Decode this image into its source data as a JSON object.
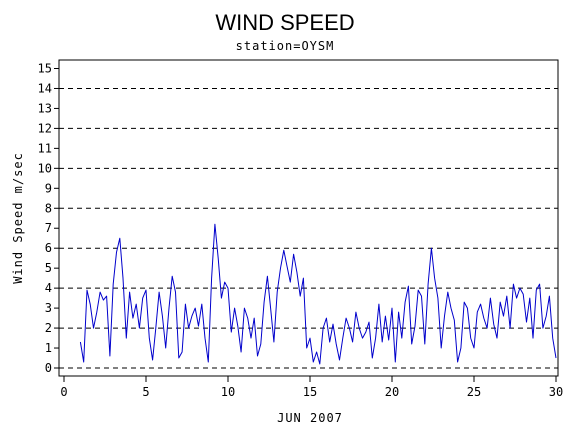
{
  "chart_data": {
    "type": "line",
    "title": "WIND SPEED",
    "subtitle": "station=OYSM",
    "xlabel": "JUN 2007",
    "ylabel": "Wind Speed m/sec",
    "xlim": [
      0,
      30
    ],
    "ylim": [
      0,
      15.5
    ],
    "xticks": [
      0,
      5,
      10,
      15,
      20,
      25,
      30
    ],
    "yticks": [
      0,
      1,
      2,
      3,
      4,
      5,
      6,
      7,
      8,
      9,
      10,
      11,
      12,
      13,
      14,
      15
    ],
    "gridlines_dashed": [
      0,
      2,
      4,
      6,
      8,
      10,
      12,
      14
    ],
    "line_color": "#0000cc",
    "series": [
      {
        "x": [
          1.0,
          1.2,
          1.4,
          1.6,
          1.8,
          2.0,
          2.2,
          2.4,
          2.6,
          2.8,
          3.0,
          3.2,
          3.4,
          3.6,
          3.8,
          4.0,
          4.2,
          4.4,
          4.6,
          4.8,
          5.0,
          5.2,
          5.4,
          5.6,
          5.8,
          6.0,
          6.2,
          6.4,
          6.6,
          6.8,
          7.0,
          7.2,
          7.4,
          7.6,
          7.8,
          8.0,
          8.2,
          8.4,
          8.6,
          8.8,
          9.0,
          9.2,
          9.4,
          9.6,
          9.8,
          10.0,
          10.2,
          10.4,
          10.6,
          10.8,
          11.0,
          11.2,
          11.4,
          11.6,
          11.8,
          12.0,
          12.2,
          12.4,
          12.6,
          12.8,
          13.0,
          13.2,
          13.4,
          13.6,
          13.8,
          14.0,
          14.2,
          14.4,
          14.6,
          14.8,
          15.0,
          15.2,
          15.4,
          15.6,
          15.8,
          16.0,
          16.2,
          16.4,
          16.6,
          16.8,
          17.0,
          17.2,
          17.4,
          17.6,
          17.8,
          18.0,
          18.2,
          18.4,
          18.6,
          18.8,
          19.0,
          19.2,
          19.4,
          19.6,
          19.8,
          20.0,
          20.2,
          20.4,
          20.6,
          20.8,
          21.0,
          21.2,
          21.4,
          21.6,
          21.8,
          22.0,
          22.2,
          22.4,
          22.6,
          22.8,
          23.0,
          23.2,
          23.4,
          23.6,
          23.8,
          24.0,
          24.2,
          24.4,
          24.6,
          24.8,
          25.0,
          25.2,
          25.4,
          25.6,
          25.8,
          26.0,
          26.2,
          26.4,
          26.6,
          26.8,
          27.0,
          27.2,
          27.4,
          27.6,
          27.8,
          28.0,
          28.2,
          28.4,
          28.6,
          28.8,
          29.0,
          29.2,
          29.4,
          29.6,
          29.8,
          30.0
        ],
        "y": [
          1.3,
          0.3,
          3.9,
          3.2,
          2.0,
          2.8,
          3.8,
          3.4,
          3.6,
          0.6,
          4.2,
          5.8,
          6.5,
          4.5,
          1.5,
          3.8,
          2.5,
          3.2,
          2.0,
          3.5,
          3.9,
          1.5,
          0.4,
          2.0,
          3.8,
          2.6,
          1.0,
          3.0,
          4.6,
          3.8,
          0.5,
          0.8,
          3.2,
          2.0,
          2.6,
          3.0,
          2.1,
          3.2,
          1.5,
          0.3,
          4.5,
          7.2,
          5.5,
          3.5,
          4.3,
          4.0,
          1.8,
          3.0,
          2.1,
          0.8,
          3.0,
          2.5,
          1.5,
          2.5,
          0.6,
          1.2,
          3.3,
          4.6,
          3.0,
          1.3,
          3.8,
          5.0,
          5.9,
          5.1,
          4.3,
          5.7,
          4.8,
          3.6,
          4.5,
          1.0,
          1.5,
          0.3,
          0.8,
          0.2,
          2.0,
          2.5,
          1.3,
          2.2,
          1.2,
          0.4,
          1.5,
          2.5,
          2.0,
          1.3,
          2.8,
          2.0,
          1.5,
          1.8,
          2.3,
          0.5,
          1.5,
          3.2,
          1.3,
          2.6,
          1.4,
          3.0,
          0.3,
          2.8,
          1.5,
          3.3,
          4.1,
          1.2,
          2.1,
          3.9,
          3.6,
          1.2,
          4.2,
          6.0,
          4.5,
          3.5,
          1.0,
          2.6,
          3.8,
          3.0,
          2.4,
          0.3,
          1.0,
          3.3,
          3.0,
          1.5,
          1.0,
          2.8,
          3.2,
          2.5,
          2.0,
          3.5,
          2.2,
          1.5,
          3.3,
          2.6,
          3.6,
          2.0,
          4.2,
          3.5,
          4.0,
          3.7,
          2.3,
          3.5,
          1.5,
          3.9,
          4.2,
          2.0,
          2.6,
          3.6,
          1.5,
          0.5
        ]
      }
    ]
  }
}
